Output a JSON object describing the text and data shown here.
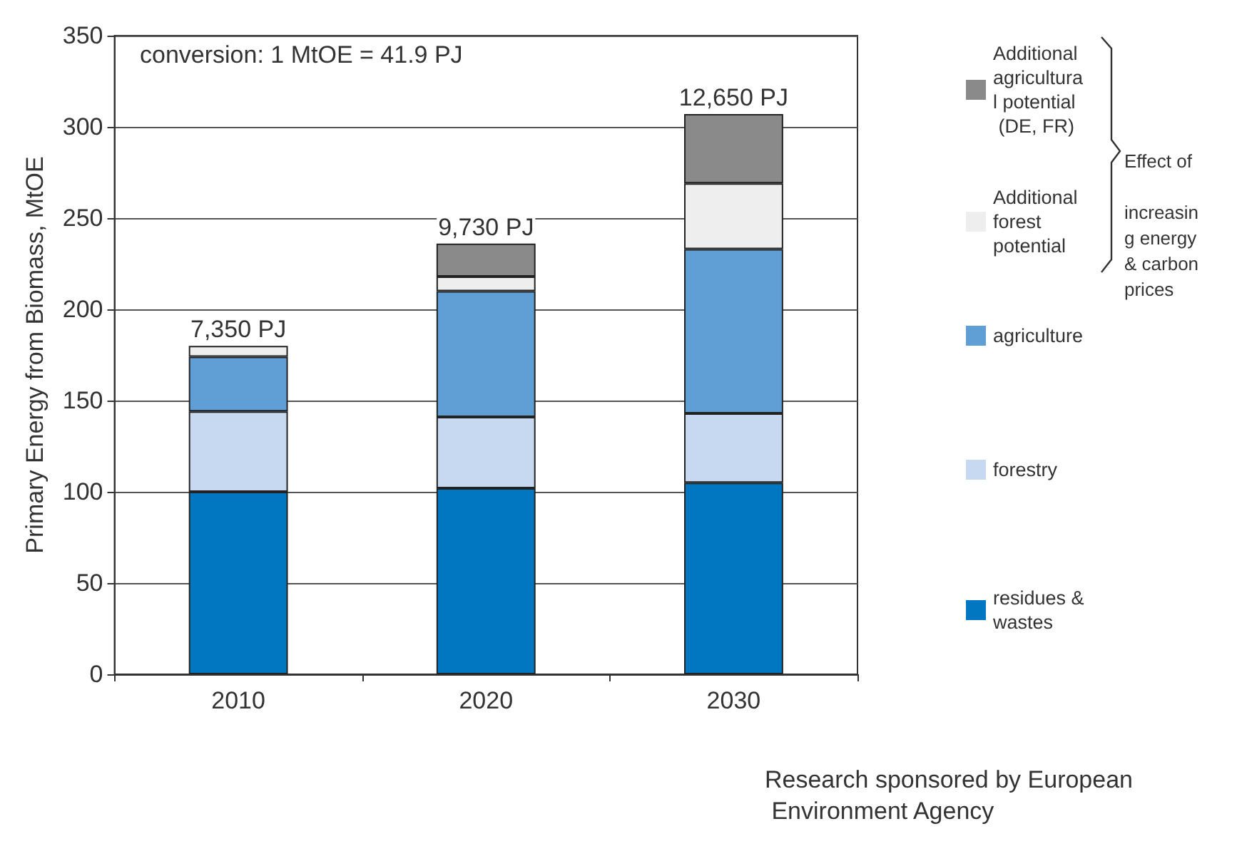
{
  "chart_data": {
    "type": "bar",
    "stacked": true,
    "ylabel": "Primary Energy from Biomass, MtOE",
    "categories": [
      "2010",
      "2020",
      "2030"
    ],
    "series": [
      {
        "name": "residues & wastes",
        "color": "#0077c0",
        "values": [
          100,
          102,
          105
        ]
      },
      {
        "name": "forestry",
        "color": "#c6d9f0",
        "values": [
          44,
          39,
          38
        ]
      },
      {
        "name": "agriculture",
        "color": "#609fd6",
        "values": [
          30,
          69,
          90
        ]
      },
      {
        "name": "Additional forest potential",
        "color": "#eeeeee",
        "values": [
          6,
          8,
          36
        ]
      },
      {
        "name": "Additional agricultural potential (DE, FR)",
        "color": "#8a8a8a",
        "values": [
          0,
          18,
          38
        ]
      }
    ],
    "ylim": [
      0,
      350
    ],
    "yticks": [
      0,
      50,
      100,
      150,
      200,
      250,
      300,
      350
    ],
    "grid": "y",
    "legend": "right",
    "annotations": [
      "conversion: 1 MtOE = 41.9 PJ",
      "Effect of increasing energy & carbon prices",
      "Research sponsored by European Environment Agency",
      {
        "text": "7,350 PJ",
        "x": "2010",
        "y": 180
      },
      {
        "text": "9,730 PJ",
        "x": "2020",
        "y": 236
      },
      {
        "text": "12,650 PJ",
        "x": "2030",
        "y": 307
      }
    ]
  }
}
